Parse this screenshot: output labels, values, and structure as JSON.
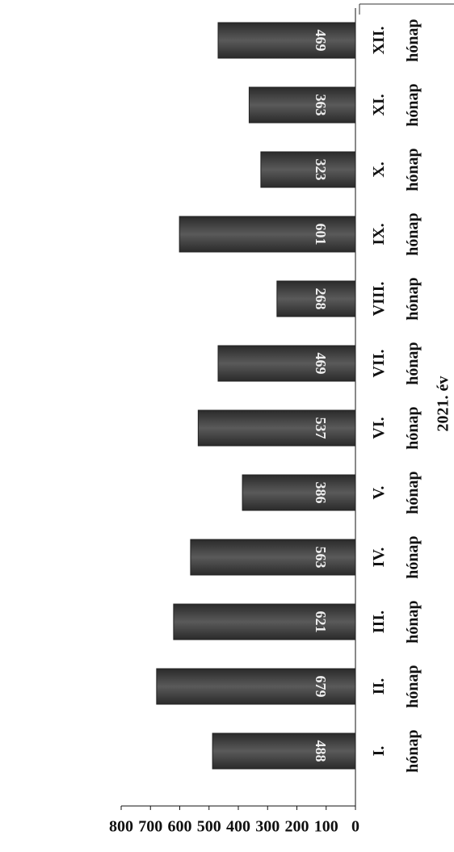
{
  "chart_data": {
    "type": "bar",
    "title": "2021. év",
    "categories": [
      "I. hónap",
      "II. hónap",
      "III. hónap",
      "IV. hónap",
      "V. hónap",
      "VI. hónap",
      "VII. hónap",
      "VIII. hónap",
      "IX. hónap",
      "X. hónap",
      "XI. hónap",
      "XII. hónap"
    ],
    "values": [
      488,
      679,
      621,
      563,
      386,
      537,
      469,
      268,
      601,
      323,
      363,
      469
    ],
    "color": "#4a4a4a",
    "ylim": [
      0,
      800
    ],
    "yticks": [
      0,
      100,
      200,
      300,
      400,
      500,
      600,
      700,
      800
    ],
    "grid": false
  }
}
